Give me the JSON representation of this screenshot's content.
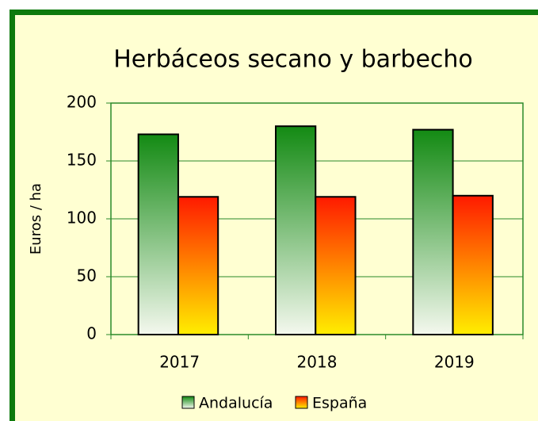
{
  "chart_data": {
    "type": "bar",
    "title": "Herbáceos secano y barbecho",
    "y_label": "Euros / ha",
    "categories": [
      "2017",
      "2018",
      "2019"
    ],
    "series": [
      {
        "name": "Andalucía",
        "color": "#138a13",
        "values": [
          173,
          180,
          177
        ]
      },
      {
        "name": "España",
        "color": "#ff1a00",
        "values": [
          119,
          119,
          120
        ]
      }
    ],
    "ylim": [
      0,
      200
    ],
    "yticks": [
      0,
      50,
      100,
      150,
      200
    ],
    "grid": true,
    "legend": "bottom"
  }
}
